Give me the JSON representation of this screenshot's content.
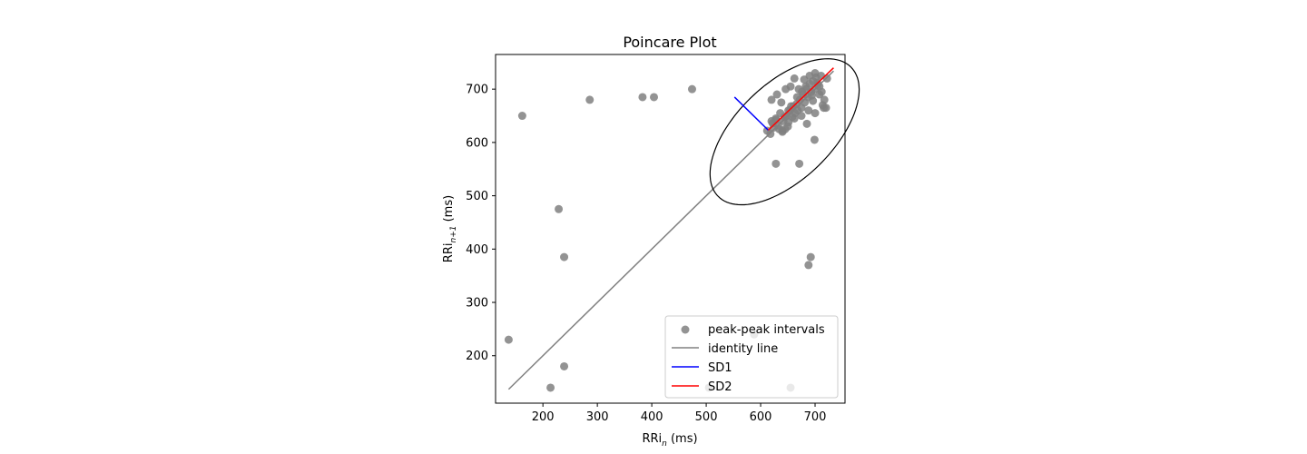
{
  "chart_data": {
    "type": "scatter",
    "title": "Poincare Plot",
    "xlabel": {
      "base": "RRi",
      "sub": "n",
      "unit": " (ms)"
    },
    "ylabel": {
      "base": "RRi",
      "sub": "n+1",
      "unit": " (ms)"
    },
    "xlim": [
      113,
      755
    ],
    "ylim": [
      111,
      765
    ],
    "xticks": [
      200,
      300,
      400,
      500,
      600,
      700
    ],
    "yticks": [
      200,
      300,
      400,
      500,
      600,
      700
    ],
    "grid": false,
    "legend_position": "lower-right",
    "series": [
      {
        "name": "peak-peak intervals",
        "kind": "scatter",
        "color": "#808080",
        "alpha": 0.85,
        "points": [
          [
            137,
            230
          ],
          [
            162,
            650
          ],
          [
            214,
            140
          ],
          [
            229,
            475
          ],
          [
            239,
            385
          ],
          [
            239,
            180
          ],
          [
            286,
            680
          ],
          [
            383,
            685
          ],
          [
            404,
            685
          ],
          [
            474,
            700
          ],
          [
            505,
            140
          ],
          [
            588,
            240
          ],
          [
            655,
            140
          ],
          [
            628,
            560
          ],
          [
            671,
            560
          ],
          [
            688,
            370
          ],
          [
            692,
            385
          ],
          [
            699,
            605
          ],
          [
            685,
            635
          ],
          [
            612,
            622
          ],
          [
            618,
            616
          ],
          [
            620,
            640
          ],
          [
            624,
            628
          ],
          [
            628,
            645
          ],
          [
            632,
            632
          ],
          [
            636,
            655
          ],
          [
            640,
            622
          ],
          [
            642,
            640
          ],
          [
            645,
            625
          ],
          [
            648,
            650
          ],
          [
            651,
            638
          ],
          [
            654,
            660
          ],
          [
            658,
            648
          ],
          [
            660,
            668
          ],
          [
            663,
            655
          ],
          [
            666,
            672
          ],
          [
            668,
            660
          ],
          [
            672,
            680
          ],
          [
            675,
            665
          ],
          [
            678,
            690
          ],
          [
            681,
            675
          ],
          [
            684,
            700
          ],
          [
            687,
            685
          ],
          [
            690,
            710
          ],
          [
            693,
            695
          ],
          [
            696,
            715
          ],
          [
            699,
            700
          ],
          [
            702,
            722
          ],
          [
            705,
            708
          ],
          [
            708,
            690
          ],
          [
            711,
            725
          ],
          [
            714,
            670
          ],
          [
            717,
            680
          ],
          [
            720,
            665
          ],
          [
            722,
            720
          ],
          [
            620,
            680
          ],
          [
            630,
            690
          ],
          [
            638,
            675
          ],
          [
            646,
            700
          ],
          [
            655,
            705
          ],
          [
            662,
            720
          ],
          [
            670,
            700
          ],
          [
            680,
            718
          ],
          [
            690,
            725
          ],
          [
            700,
            730
          ],
          [
            708,
            705
          ],
          [
            716,
            665
          ],
          [
            700,
            655
          ],
          [
            688,
            660
          ],
          [
            675,
            650
          ],
          [
            662,
            645
          ],
          [
            650,
            630
          ],
          [
            640,
            620
          ],
          [
            634,
            625
          ],
          [
            644,
            648
          ],
          [
            656,
            668
          ],
          [
            667,
            685
          ],
          [
            676,
            695
          ],
          [
            694,
            688
          ],
          [
            704,
            712
          ],
          [
            696,
            678
          ],
          [
            683,
            705
          ],
          [
            712,
            695
          ],
          [
            622,
            636
          ],
          [
            628,
            642
          ],
          [
            651,
            660
          ]
        ]
      },
      {
        "name": "identity line",
        "kind": "line",
        "color": "#808080",
        "from": [
          137,
          137
        ],
        "to": [
          734,
          734
        ]
      },
      {
        "name": "SD1",
        "kind": "line",
        "color": "#0000ff",
        "from": [
          552,
          685
        ],
        "to": [
          614,
          623
        ]
      },
      {
        "name": "SD2",
        "kind": "line",
        "color": "#ff0000",
        "from": [
          614,
          623
        ],
        "to": [
          734,
          740
        ]
      }
    ],
    "ellipse": {
      "center_x": 644,
      "center_y": 620,
      "sd1": 89,
      "sd2": 172,
      "angle_deg": 45,
      "color": "#000000"
    }
  }
}
